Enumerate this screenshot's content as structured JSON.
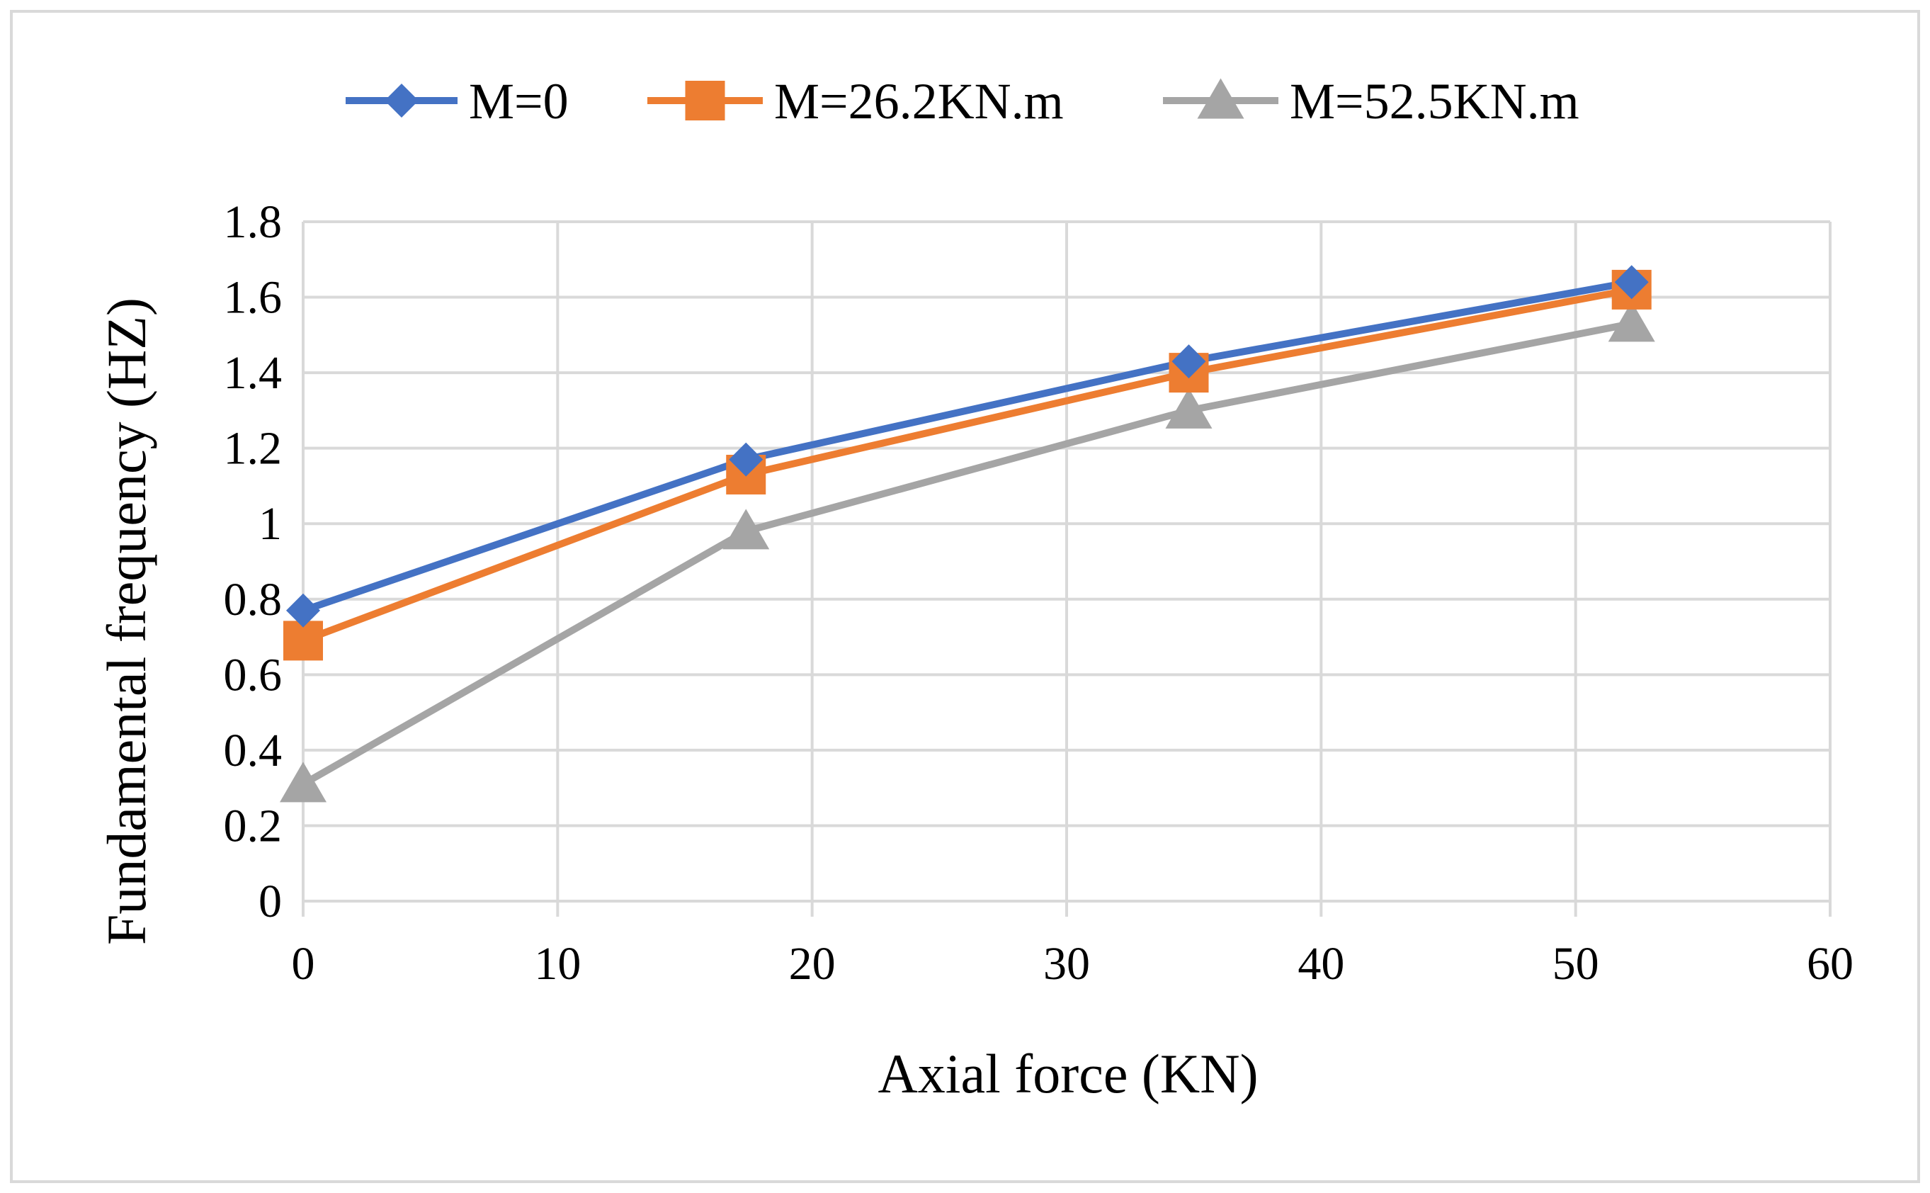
{
  "chart_data": {
    "type": "line",
    "title": "",
    "xlabel": "Axial force (KN)",
    "ylabel": "Fundamental frequency (HZ)",
    "xlim": [
      0,
      60
    ],
    "ylim": [
      0,
      1.8
    ],
    "xticks": [
      0,
      10,
      20,
      30,
      40,
      50,
      60
    ],
    "yticks": [
      0,
      0.2,
      0.4,
      0.6,
      0.8,
      1,
      1.2,
      1.4,
      1.6,
      1.8
    ],
    "xtick_labels": [
      "0",
      "10",
      "20",
      "30",
      "40",
      "50",
      "60"
    ],
    "ytick_labels": [
      "0",
      "0.2",
      "0.4",
      "0.6",
      "0.8",
      "1",
      "1.2",
      "1.4",
      "1.6",
      "1.8"
    ],
    "grid": true,
    "legend_position": "top",
    "x": [
      0,
      17.4,
      34.8,
      52.2
    ],
    "series": [
      {
        "name": "M=0",
        "color": "#4472C4",
        "marker": "diamond",
        "values": [
          0.77,
          1.17,
          1.43,
          1.64
        ]
      },
      {
        "name": "M=26.2KN.m",
        "color": "#ED7D31",
        "marker": "square",
        "values": [
          0.69,
          1.13,
          1.4,
          1.62
        ]
      },
      {
        "name": "M=52.5KN.m",
        "color": "#A5A5A5",
        "marker": "triangle",
        "values": [
          0.31,
          0.98,
          1.3,
          1.53
        ]
      }
    ]
  }
}
